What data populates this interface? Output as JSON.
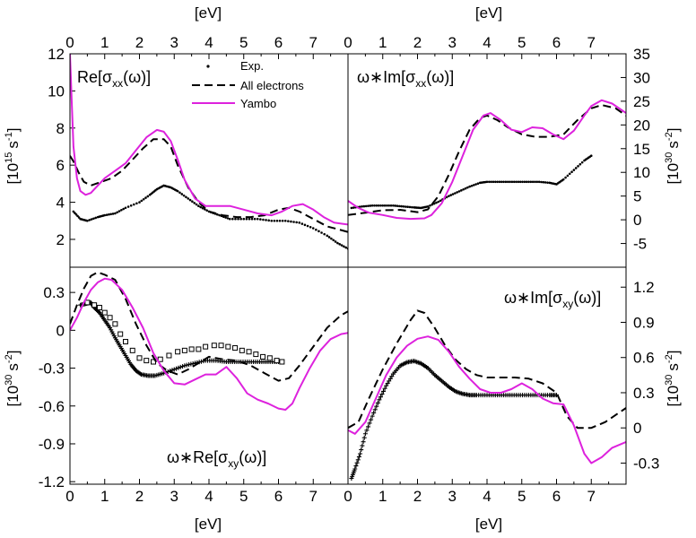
{
  "units": {
    "ev": "[eV]",
    "top_ylabel": "[10",
    "top_ylabel_exp": "15",
    "top_ylabel_unit": "s",
    "top_ylabel_unit_exp": "-1",
    "top_ylabel_close": "]",
    "w_label": "[10",
    "w_label_exp": "30",
    "w_label_unit": "s",
    "w_label_unit_exp": "-2",
    "w_label_close": "]"
  },
  "x_ticks": [
    "0",
    "1",
    "2",
    "3",
    "4",
    "5",
    "6",
    "7"
  ],
  "legend": {
    "exp": "Exp.",
    "all": "All electrons",
    "yambo": "Yambo"
  },
  "colors": {
    "yambo": "#dd22dd",
    "all": "#000000",
    "exp": "#000000"
  },
  "chart_data": [
    {
      "type": "line",
      "title": "Re[σxx(ω)]",
      "title_parts": {
        "pre": "Re[σ",
        "sub": "xx",
        "post": "(ω)]"
      },
      "xlim": [
        0,
        8
      ],
      "ylim": [
        0.5,
        12
      ],
      "yticks": [
        "2",
        "4",
        "6",
        "8",
        "10",
        "12"
      ],
      "series": [
        {
          "name": "Exp.",
          "style": "dots",
          "x": [
            0.1,
            0.3,
            0.5,
            0.8,
            1.0,
            1.3,
            1.6,
            2.0,
            2.3,
            2.5,
            2.7,
            2.9,
            3.1,
            3.4,
            3.7,
            4.0,
            4.3,
            4.6,
            5.0,
            5.4,
            5.8,
            6.2,
            6.6,
            7.0,
            7.4,
            7.7,
            8.0
          ],
          "y": [
            3.5,
            3.1,
            3.0,
            3.2,
            3.3,
            3.4,
            3.7,
            4.0,
            4.4,
            4.7,
            4.9,
            4.8,
            4.6,
            4.2,
            3.8,
            3.5,
            3.3,
            3.1,
            3.1,
            3.1,
            3.0,
            3.0,
            2.9,
            2.6,
            2.2,
            1.8,
            1.5
          ]
        },
        {
          "name": "All electrons",
          "style": "dash",
          "x": [
            0,
            0.1,
            0.25,
            0.4,
            0.6,
            0.9,
            1.2,
            1.5,
            1.8,
            2.1,
            2.4,
            2.7,
            2.9,
            3.1,
            3.4,
            3.7,
            4.0,
            4.4,
            4.8,
            5.2,
            5.6,
            6.0,
            6.3,
            6.6,
            7.0,
            7.4,
            7.8,
            8.0
          ],
          "y": [
            6.5,
            6.2,
            5.6,
            5.1,
            4.9,
            5.1,
            5.3,
            5.7,
            6.3,
            6.9,
            7.4,
            7.4,
            7.0,
            6.0,
            4.8,
            4.0,
            3.5,
            3.3,
            3.2,
            3.2,
            3.3,
            3.6,
            3.7,
            3.5,
            3.1,
            2.7,
            2.5,
            2.4
          ]
        },
        {
          "name": "Yambo",
          "style": "solid",
          "x": [
            0,
            0.05,
            0.1,
            0.2,
            0.3,
            0.45,
            0.6,
            0.8,
            1.0,
            1.3,
            1.6,
            1.9,
            2.2,
            2.5,
            2.7,
            2.9,
            3.1,
            3.3,
            3.6,
            3.9,
            4.2,
            4.6,
            5.0,
            5.4,
            5.8,
            6.1,
            6.4,
            6.7,
            7.0,
            7.3,
            7.6,
            8.0
          ],
          "y": [
            12,
            9.5,
            7.0,
            5.3,
            4.6,
            4.4,
            4.5,
            4.9,
            5.3,
            5.7,
            6.1,
            6.8,
            7.5,
            7.9,
            7.8,
            7.3,
            6.3,
            5.2,
            4.2,
            3.8,
            3.8,
            3.8,
            3.6,
            3.4,
            3.3,
            3.5,
            3.8,
            3.9,
            3.6,
            3.2,
            2.9,
            2.8
          ]
        }
      ]
    },
    {
      "type": "line",
      "title": "ω∗Im[σxx(ω)]",
      "title_parts": {
        "pre": "ω∗Im[σ",
        "sub": "xx",
        "post": "(ω)]"
      },
      "xlim": [
        0,
        8
      ],
      "ylim": [
        -10,
        35
      ],
      "yticks": [
        "-5",
        "0",
        "5",
        "10",
        "15",
        "20",
        "25",
        "30",
        "35"
      ],
      "series": [
        {
          "name": "Exp.",
          "style": "dots",
          "x": [
            0.1,
            0.4,
            0.7,
            1.0,
            1.3,
            1.6,
            1.9,
            2.1,
            2.3,
            2.6,
            2.9,
            3.2,
            3.5,
            3.8,
            4.0,
            4.3,
            4.6,
            4.9,
            5.2,
            5.5,
            5.8,
            6.0,
            6.2,
            6.5,
            6.8,
            7.0
          ],
          "y": [
            2.5,
            2.8,
            3.0,
            3.0,
            3.0,
            2.8,
            2.6,
            2.5,
            2.8,
            3.8,
            5.0,
            6.0,
            7.0,
            7.8,
            8.0,
            8.0,
            8.0,
            8.0,
            8.0,
            8.0,
            7.8,
            7.5,
            8.5,
            10.5,
            12.5,
            13.5
          ]
        },
        {
          "name": "All electrons",
          "style": "dash",
          "x": [
            0,
            0.5,
            1.0,
            1.5,
            2.0,
            2.3,
            2.6,
            2.9,
            3.2,
            3.5,
            3.8,
            4.0,
            4.3,
            4.6,
            5.0,
            5.4,
            5.8,
            6.2,
            6.6,
            7.0,
            7.3,
            7.7,
            8.0
          ],
          "y": [
            1.0,
            1.5,
            2.0,
            2.1,
            1.6,
            2.2,
            5.0,
            9.5,
            14.5,
            19.0,
            21.5,
            22.0,
            21.0,
            19.5,
            18.0,
            17.5,
            17.5,
            18.0,
            21.0,
            23.5,
            24.2,
            23.5,
            22.0
          ]
        },
        {
          "name": "Yambo",
          "style": "solid",
          "x": [
            0,
            0.3,
            0.6,
            1.0,
            1.4,
            1.8,
            2.2,
            2.4,
            2.7,
            3.0,
            3.3,
            3.6,
            3.9,
            4.1,
            4.4,
            4.7,
            5.0,
            5.3,
            5.6,
            5.9,
            6.2,
            6.5,
            6.8,
            7.0,
            7.3,
            7.6,
            8.0
          ],
          "y": [
            4.0,
            2.5,
            1.5,
            1.0,
            0.4,
            0.2,
            0.3,
            1.0,
            3.5,
            8.0,
            13.5,
            19.0,
            22.0,
            22.5,
            21.0,
            19.0,
            18.5,
            19.5,
            19.3,
            18.0,
            17.0,
            18.8,
            22.0,
            24.0,
            25.2,
            24.5,
            22.5
          ]
        }
      ]
    },
    {
      "type": "line",
      "title": "ω∗Re[σxy(ω)]",
      "title_parts": {
        "pre": "ω∗Re[σ",
        "sub": "xy",
        "post": "(ω)]"
      },
      "xlim": [
        0,
        8
      ],
      "ylim": [
        -1.22,
        0.5
      ],
      "yticks": [
        "-1.2",
        "-0.9",
        "-0.6",
        "-0.3",
        "0",
        "0.3"
      ],
      "series": [
        {
          "name": "Exp. (plus)",
          "style": "plus",
          "x": [
            0.3,
            0.45,
            0.6,
            0.7,
            0.85,
            1.0,
            1.15,
            1.3,
            1.45,
            1.6,
            1.75,
            1.9,
            2.05,
            2.25,
            2.45,
            2.7,
            3.0,
            3.3,
            3.6,
            3.9,
            4.2,
            4.5,
            4.8,
            5.1,
            5.4,
            5.7,
            6.0
          ],
          "y": [
            0.2,
            0.21,
            0.22,
            0.18,
            0.14,
            0.08,
            0.02,
            -0.06,
            -0.13,
            -0.2,
            -0.27,
            -0.32,
            -0.35,
            -0.36,
            -0.36,
            -0.34,
            -0.31,
            -0.28,
            -0.26,
            -0.24,
            -0.24,
            -0.25,
            -0.25,
            -0.25,
            -0.25,
            -0.25,
            -0.25
          ]
        },
        {
          "name": "Exp. (squares)",
          "style": "square",
          "x": [
            0.5,
            0.7,
            0.85,
            1.0,
            1.15,
            1.3,
            1.45,
            1.6,
            1.8,
            2.0,
            2.2,
            2.4,
            2.6,
            2.85,
            3.1,
            3.3,
            3.5,
            3.7,
            3.9,
            4.15,
            4.35,
            4.55,
            4.75,
            4.95,
            5.15,
            5.35,
            5.55,
            5.75,
            5.95,
            6.1
          ],
          "y": [
            0.22,
            0.2,
            0.18,
            0.14,
            0.1,
            0.05,
            -0.03,
            -0.09,
            -0.16,
            -0.22,
            -0.24,
            -0.25,
            -0.23,
            -0.2,
            -0.17,
            -0.16,
            -0.15,
            -0.15,
            -0.13,
            -0.12,
            -0.12,
            -0.13,
            -0.14,
            -0.16,
            -0.17,
            -0.19,
            -0.21,
            -0.22,
            -0.24,
            -0.25
          ]
        },
        {
          "name": "All electrons",
          "style": "dash",
          "x": [
            0,
            0.2,
            0.4,
            0.6,
            0.8,
            1.0,
            1.3,
            1.6,
            1.9,
            2.2,
            2.5,
            2.8,
            3.1,
            3.4,
            3.7,
            4.0,
            4.4,
            4.8,
            5.2,
            5.6,
            6.0,
            6.3,
            6.6,
            7.0,
            7.4,
            7.8,
            8.0
          ],
          "y": [
            0.05,
            0.2,
            0.33,
            0.43,
            0.46,
            0.44,
            0.4,
            0.25,
            0.05,
            -0.12,
            -0.26,
            -0.32,
            -0.35,
            -0.31,
            -0.26,
            -0.21,
            -0.23,
            -0.24,
            -0.28,
            -0.34,
            -0.4,
            -0.38,
            -0.28,
            -0.13,
            0.02,
            0.12,
            0.15
          ]
        },
        {
          "name": "Yambo",
          "style": "solid",
          "x": [
            0,
            0.2,
            0.4,
            0.6,
            0.8,
            1.0,
            1.2,
            1.5,
            1.8,
            2.1,
            2.4,
            2.7,
            3.0,
            3.3,
            3.6,
            3.9,
            4.2,
            4.5,
            4.8,
            5.1,
            5.4,
            5.7,
            6.0,
            6.2,
            6.4,
            6.6,
            6.9,
            7.2,
            7.5,
            7.8,
            8.0
          ],
          "y": [
            0.0,
            0.1,
            0.22,
            0.32,
            0.38,
            0.41,
            0.4,
            0.32,
            0.18,
            0.02,
            -0.18,
            -0.32,
            -0.42,
            -0.43,
            -0.39,
            -0.35,
            -0.35,
            -0.29,
            -0.38,
            -0.5,
            -0.55,
            -0.58,
            -0.62,
            -0.63,
            -0.58,
            -0.46,
            -0.3,
            -0.16,
            -0.07,
            -0.03,
            -0.02
          ]
        }
      ]
    },
    {
      "type": "line",
      "title": "ω∗Im[σxy(ω)]",
      "title_parts": {
        "pre": "ω∗Im[σ",
        "sub": "xy",
        "post": "(ω)]"
      },
      "xlim": [
        0,
        8
      ],
      "ylim": [
        -0.48,
        1.37
      ],
      "yticks": [
        "-0.3",
        "0",
        "0.3",
        "0.6",
        "0.9",
        "1.2"
      ],
      "series": [
        {
          "name": "Exp.",
          "style": "plus",
          "x": [
            0.1,
            0.2,
            0.35,
            0.5,
            0.7,
            0.9,
            1.1,
            1.3,
            1.5,
            1.7,
            1.9,
            2.1,
            2.3,
            2.5,
            2.7,
            2.9,
            3.1,
            3.3,
            3.5,
            3.7,
            4.0,
            4.3,
            4.6,
            4.9,
            5.2,
            5.5,
            5.8,
            6.0
          ],
          "y": [
            -0.43,
            -0.35,
            -0.22,
            -0.05,
            0.1,
            0.24,
            0.36,
            0.46,
            0.53,
            0.56,
            0.57,
            0.55,
            0.51,
            0.45,
            0.4,
            0.35,
            0.31,
            0.29,
            0.28,
            0.28,
            0.28,
            0.28,
            0.28,
            0.28,
            0.28,
            0.28,
            0.28,
            0.28
          ]
        },
        {
          "name": "All electrons",
          "style": "dash",
          "x": [
            0,
            0.3,
            0.6,
            1.0,
            1.4,
            1.8,
            2.0,
            2.2,
            2.5,
            2.8,
            3.1,
            3.4,
            3.7,
            4.0,
            4.4,
            4.8,
            5.2,
            5.6,
            6.0,
            6.3,
            6.6,
            7.0,
            7.4,
            7.8,
            8.0
          ],
          "y": [
            0.0,
            0.05,
            0.25,
            0.5,
            0.72,
            0.92,
            1.0,
            0.98,
            0.85,
            0.7,
            0.58,
            0.5,
            0.45,
            0.43,
            0.43,
            0.43,
            0.42,
            0.38,
            0.3,
            0.1,
            0.0,
            0.0,
            0.05,
            0.13,
            0.17
          ]
        },
        {
          "name": "Yambo",
          "style": "solid",
          "x": [
            0,
            0.2,
            0.5,
            0.8,
            1.1,
            1.4,
            1.7,
            2.0,
            2.3,
            2.6,
            2.9,
            3.2,
            3.5,
            3.8,
            4.1,
            4.4,
            4.7,
            5.0,
            5.3,
            5.6,
            5.9,
            6.2,
            6.5,
            6.8,
            7.0,
            7.3,
            7.6,
            8.0
          ],
          "y": [
            -0.02,
            -0.05,
            0.05,
            0.25,
            0.45,
            0.6,
            0.7,
            0.76,
            0.78,
            0.75,
            0.65,
            0.52,
            0.42,
            0.33,
            0.3,
            0.3,
            0.33,
            0.38,
            0.33,
            0.25,
            0.21,
            0.2,
            0.02,
            -0.22,
            -0.3,
            -0.25,
            -0.17,
            -0.12
          ]
        }
      ]
    }
  ]
}
